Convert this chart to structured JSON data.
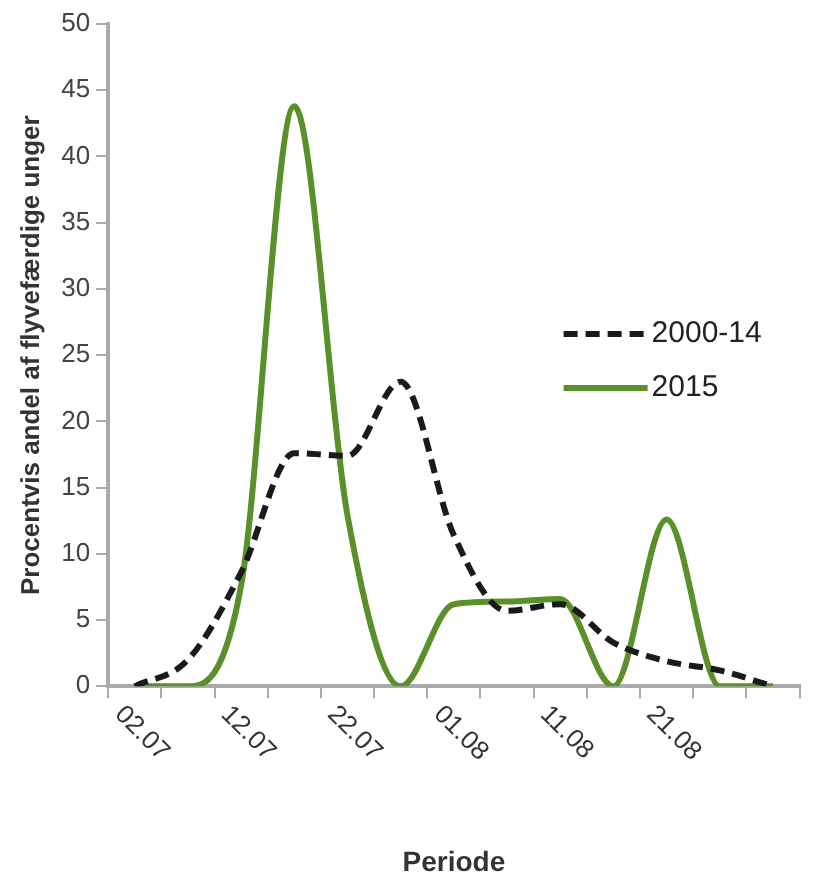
{
  "chart_data": {
    "type": "line",
    "xlabel": "Periode",
    "ylabel": "Procentvis andel af flyvefærdige unger",
    "categories": [
      "02.07",
      null,
      "12.07",
      null,
      "22.07",
      null,
      "01.08",
      null,
      "11.08",
      null,
      "21.08",
      null,
      null
    ],
    "series": [
      {
        "name": "2000-14",
        "color": "#1a1a1a",
        "line_style": "dashed",
        "values": [
          0,
          2,
          8.6,
          17.6,
          17.4,
          23,
          11.4,
          5.7,
          6.2,
          3.3,
          1.9,
          1.2,
          0
        ]
      },
      {
        "name": "2015",
        "color": "#5b8f29",
        "line_style": "solid",
        "values": [
          0,
          0,
          7.6,
          43.8,
          12.9,
          0,
          6.2,
          6.4,
          6.6,
          0,
          12.6,
          0,
          0
        ]
      }
    ],
    "ylim": [
      0,
      50
    ],
    "yticks": [
      0,
      5,
      10,
      15,
      20,
      25,
      30,
      35,
      40,
      45,
      50
    ],
    "grid": false,
    "legend": "right",
    "marker": "none"
  }
}
